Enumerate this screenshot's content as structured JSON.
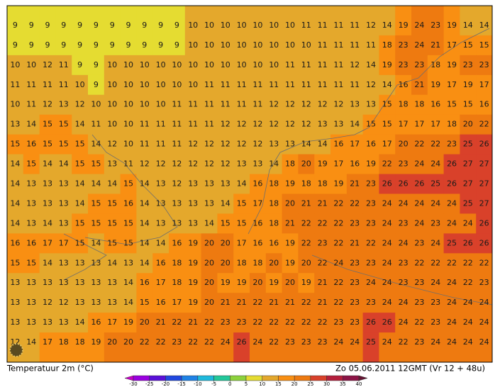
{
  "map": {
    "title": "Temperatuur 2m (°C)",
    "valid_time": "Zo 05.06.2011 12GMT (Vr 12 + 48u)",
    "legend": {
      "boundaries": [
        -30,
        -25,
        -20,
        -15,
        -10,
        -5,
        0,
        5,
        10,
        15,
        20,
        25,
        30,
        35,
        40
      ],
      "colors": [
        "#c800c8",
        "#9a00e0",
        "#5a10d8",
        "#2048e0",
        "#1e82e6",
        "#1eb9dc",
        "#22c89a",
        "#8cd23c",
        "#e5dc31",
        "#e4a82c",
        "#f98f12",
        "#ee7a10",
        "#d9412a",
        "#b41e3c",
        "#8c1446",
        "#641432"
      ]
    },
    "grid": [
      [
        9,
        9,
        9,
        9,
        9,
        9,
        9,
        9,
        9,
        9,
        9,
        10,
        10,
        10,
        10,
        10,
        10,
        10,
        11,
        11,
        11,
        11,
        12,
        14,
        19,
        24,
        23,
        19,
        14,
        14
      ],
      [
        9,
        9,
        9,
        9,
        9,
        9,
        9,
        9,
        9,
        9,
        9,
        10,
        10,
        10,
        10,
        10,
        10,
        10,
        10,
        11,
        11,
        11,
        11,
        18,
        23,
        24,
        21,
        17,
        15,
        15
      ],
      [
        10,
        10,
        12,
        11,
        9,
        9,
        10,
        10,
        10,
        10,
        10,
        10,
        10,
        10,
        10,
        10,
        10,
        11,
        11,
        11,
        11,
        12,
        14,
        19,
        23,
        23,
        18,
        19,
        23,
        23
      ],
      [
        11,
        11,
        11,
        11,
        10,
        9,
        10,
        10,
        10,
        10,
        10,
        10,
        11,
        11,
        11,
        11,
        11,
        11,
        11,
        11,
        11,
        11,
        12,
        14,
        16,
        21,
        19,
        17,
        19,
        17
      ],
      [
        10,
        11,
        12,
        13,
        12,
        10,
        10,
        10,
        10,
        10,
        11,
        11,
        11,
        11,
        11,
        11,
        12,
        12,
        12,
        12,
        12,
        13,
        13,
        15,
        18,
        18,
        16,
        15,
        15,
        16
      ],
      [
        13,
        14,
        15,
        15,
        14,
        11,
        10,
        10,
        11,
        11,
        11,
        11,
        11,
        12,
        12,
        12,
        12,
        12,
        12,
        13,
        13,
        14,
        15,
        15,
        17,
        17,
        17,
        18,
        20,
        22
      ],
      [
        15,
        16,
        15,
        15,
        15,
        14,
        12,
        10,
        11,
        11,
        11,
        12,
        12,
        12,
        12,
        12,
        13,
        13,
        14,
        14,
        16,
        17,
        16,
        17,
        20,
        22,
        22,
        23,
        25,
        26
      ],
      [
        14,
        15,
        14,
        14,
        15,
        15,
        13,
        11,
        12,
        12,
        12,
        12,
        12,
        12,
        13,
        13,
        14,
        18,
        20,
        19,
        17,
        16,
        19,
        22,
        23,
        24,
        24,
        26,
        27,
        27
      ],
      [
        14,
        13,
        13,
        13,
        14,
        14,
        14,
        15,
        14,
        13,
        12,
        13,
        13,
        13,
        14,
        16,
        18,
        19,
        18,
        18,
        19,
        21,
        23,
        26,
        26,
        26,
        25,
        26,
        27,
        27
      ],
      [
        14,
        13,
        13,
        13,
        14,
        15,
        15,
        16,
        14,
        13,
        13,
        13,
        13,
        14,
        15,
        17,
        18,
        20,
        21,
        21,
        22,
        22,
        23,
        24,
        24,
        24,
        24,
        24,
        25,
        27
      ],
      [
        14,
        13,
        14,
        13,
        15,
        15,
        15,
        15,
        14,
        13,
        13,
        13,
        14,
        15,
        15,
        16,
        18,
        21,
        22,
        22,
        22,
        23,
        23,
        24,
        23,
        24,
        23,
        24,
        24,
        26
      ],
      [
        16,
        16,
        17,
        17,
        15,
        14,
        15,
        15,
        14,
        14,
        16,
        19,
        20,
        20,
        17,
        16,
        16,
        19,
        22,
        23,
        22,
        21,
        22,
        24,
        24,
        23,
        24,
        25,
        26,
        26
      ],
      [
        15,
        15,
        14,
        13,
        13,
        13,
        14,
        13,
        14,
        16,
        18,
        19,
        20,
        20,
        18,
        18,
        20,
        19,
        20,
        22,
        24,
        23,
        23,
        24,
        23,
        22,
        22,
        22,
        22,
        22
      ],
      [
        13,
        13,
        13,
        13,
        13,
        13,
        13,
        14,
        16,
        17,
        18,
        19,
        20,
        19,
        19,
        20,
        19,
        20,
        19,
        21,
        22,
        23,
        24,
        24,
        23,
        23,
        24,
        24,
        22,
        23
      ],
      [
        13,
        13,
        12,
        12,
        13,
        13,
        13,
        14,
        15,
        16,
        17,
        19,
        20,
        21,
        21,
        22,
        21,
        21,
        22,
        21,
        22,
        23,
        23,
        24,
        24,
        23,
        23,
        24,
        24,
        24
      ],
      [
        13,
        13,
        13,
        13,
        14,
        16,
        17,
        19,
        20,
        21,
        22,
        21,
        22,
        23,
        23,
        22,
        22,
        22,
        22,
        22,
        23,
        23,
        26,
        26,
        24,
        22,
        23,
        24,
        24,
        24
      ],
      [
        12,
        14,
        17,
        18,
        18,
        19,
        20,
        20,
        22,
        22,
        23,
        22,
        22,
        24,
        26,
        24,
        22,
        23,
        23,
        23,
        24,
        24,
        25,
        24,
        22,
        23,
        24,
        24,
        24,
        24
      ]
    ]
  }
}
